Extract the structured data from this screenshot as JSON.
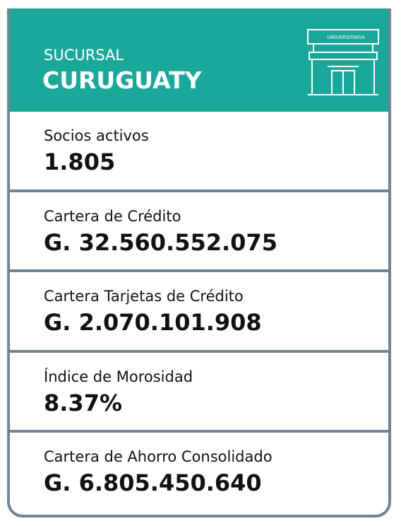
{
  "header": {
    "label": "SUCURSAL",
    "name": "CURUGUATY",
    "logo_text": "UNIVERSITARIA"
  },
  "rows": [
    {
      "label": "Socios activos",
      "value": "1.805"
    },
    {
      "label": "Cartera de Crédito",
      "value": "G. 32.560.552.075"
    },
    {
      "label": "Cartera Tarjetas de Crédito",
      "value": "G. 2.070.101.908"
    },
    {
      "label": "Índice de Morosidad",
      "value": "8.37%"
    },
    {
      "label": "Cartera de Ahorro Consolidado",
      "value": "G. 6.805.450.640"
    }
  ]
}
